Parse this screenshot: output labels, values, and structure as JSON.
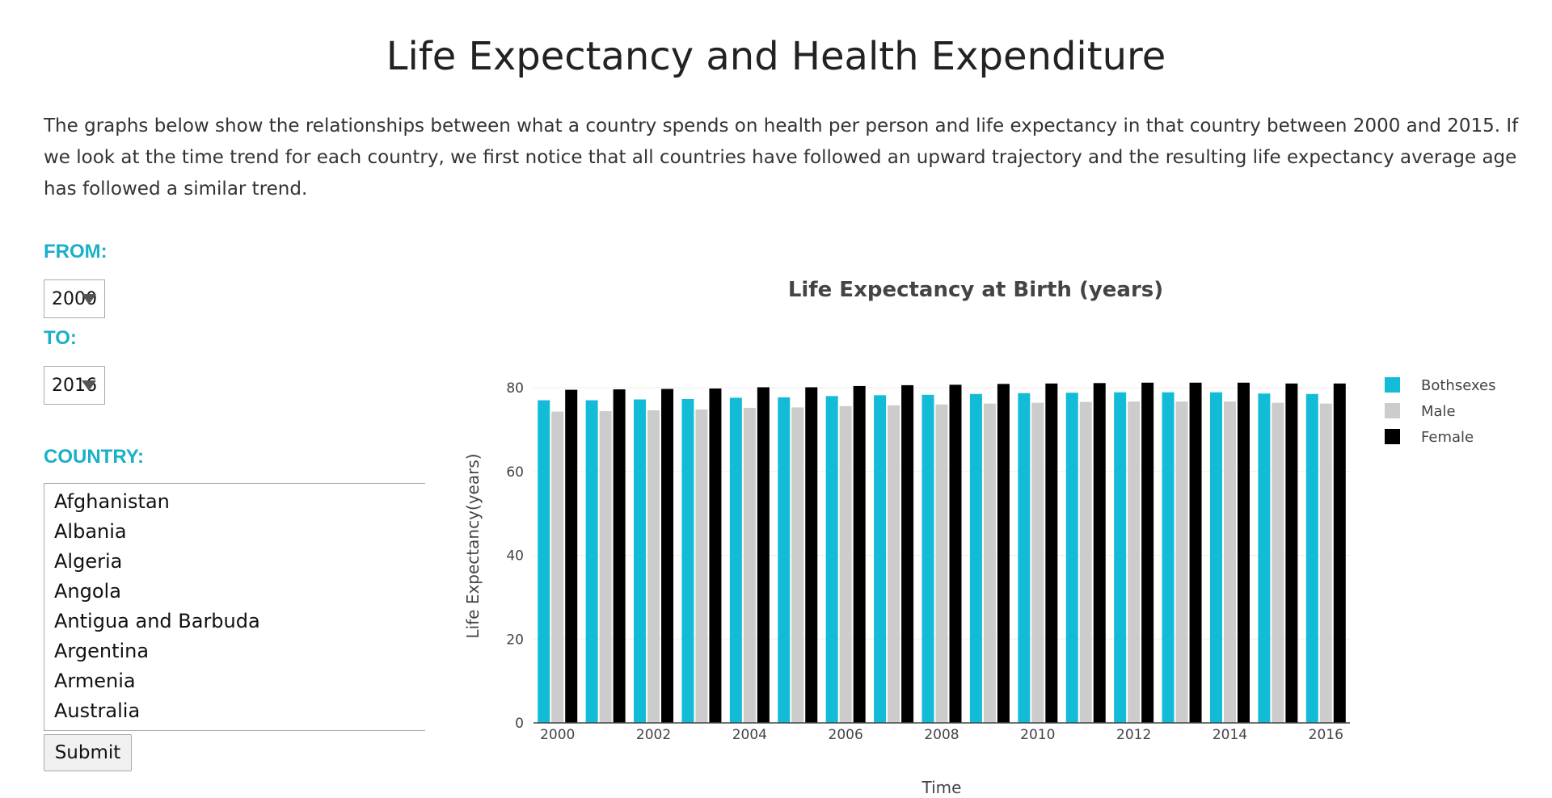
{
  "page": {
    "title": "Life Expectancy and Health Expenditure",
    "intro": "The graphs below show the relationships between what a country spends on health per person and life expectancy in that country between 2000 and 2015. If we look at the time trend for each country, we first notice that all countries have followed an upward trajectory and the resulting life expectancy average age has followed a similar trend."
  },
  "controls": {
    "from_label": "FROM:",
    "from_value": "2000",
    "to_label": "TO:",
    "to_value": "2016",
    "country_label": "COUNTRY:",
    "countries": [
      "Afghanistan",
      "Albania",
      "Algeria",
      "Angola",
      "Antigua and Barbuda",
      "Argentina",
      "Armenia",
      "Australia"
    ],
    "submit_label": "Submit"
  },
  "chart_data": {
    "type": "bar",
    "title": "Life Expectancy at Birth (years)",
    "xlabel": "Time",
    "ylabel": "Life Expectancy(years)",
    "ylim": [
      0,
      80
    ],
    "yticks": [
      0,
      20,
      40,
      60,
      80
    ],
    "x": [
      2000,
      2001,
      2002,
      2003,
      2004,
      2005,
      2006,
      2007,
      2008,
      2009,
      2010,
      2011,
      2012,
      2013,
      2014,
      2015,
      2016
    ],
    "xticks": [
      2000,
      2002,
      2004,
      2006,
      2008,
      2010,
      2012,
      2014,
      2016
    ],
    "legend_position": "top-right",
    "grid": false,
    "series": [
      {
        "name": "Bothsexes",
        "color": "#13bcd6",
        "values": [
          77.0,
          77.0,
          77.2,
          77.3,
          77.6,
          77.7,
          78.0,
          78.2,
          78.3,
          78.5,
          78.7,
          78.8,
          78.9,
          78.9,
          78.9,
          78.6,
          78.5
        ]
      },
      {
        "name": "Male",
        "color": "#cccccc",
        "values": [
          74.3,
          74.4,
          74.6,
          74.8,
          75.2,
          75.3,
          75.6,
          75.8,
          76.0,
          76.2,
          76.4,
          76.6,
          76.7,
          76.7,
          76.7,
          76.4,
          76.2
        ]
      },
      {
        "name": "Female",
        "color": "#000000",
        "values": [
          79.5,
          79.6,
          79.7,
          79.8,
          80.1,
          80.1,
          80.4,
          80.6,
          80.7,
          80.9,
          81.0,
          81.1,
          81.2,
          81.2,
          81.2,
          81.0,
          81.0
        ]
      }
    ]
  }
}
